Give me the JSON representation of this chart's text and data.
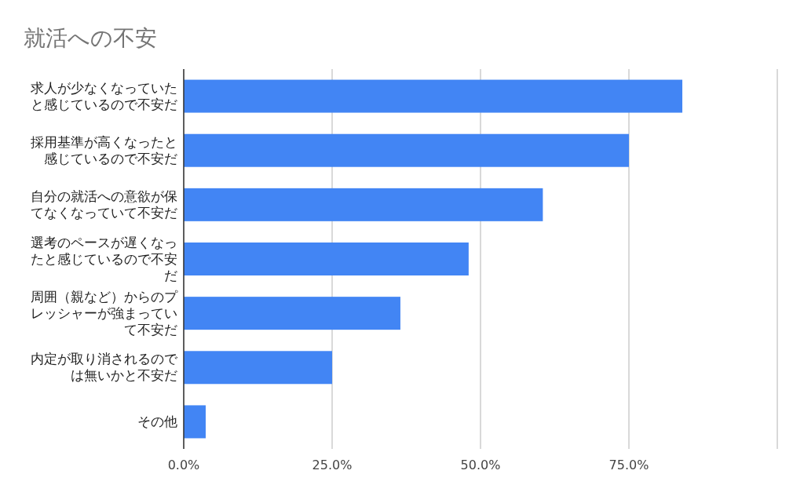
{
  "chart_data": {
    "type": "bar",
    "orientation": "horizontal",
    "title": "就活への不安",
    "categories": [
      "求人が少なくなっていたと感じているので不安だ",
      "採用基準が高くなったと感じているので不安だ",
      "自分の就活への意欲が保てなくなっていて不安だ",
      "選考のペースが遅くなったと感じているので不安だ",
      "周囲（親など）からのプレッシャーが強まっていて不安だ",
      "内定が取り消されるのでは無いかと不安だ",
      "その他"
    ],
    "values": [
      84,
      75,
      60.5,
      48,
      36.5,
      25,
      3.7
    ],
    "color": "#4285f4",
    "xlim": [
      0,
      100
    ],
    "xticks": [
      {
        "value": 0,
        "label": "0.0%"
      },
      {
        "value": 25,
        "label": "25.0%"
      },
      {
        "value": 50,
        "label": "50.0%"
      },
      {
        "value": 75,
        "label": "75.0%"
      },
      {
        "value": 100,
        "label": null
      }
    ],
    "grid": "x"
  }
}
